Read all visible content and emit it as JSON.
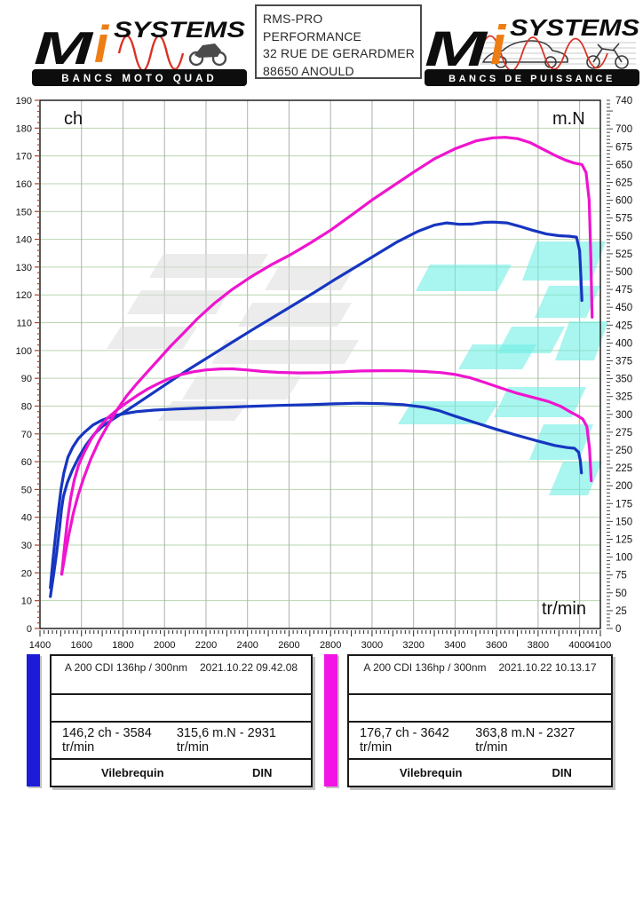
{
  "header": {
    "left_logo": {
      "m": "M",
      "i": "i",
      "systems": "SYSTEMS",
      "banner": "BANCS MOTO QUAD"
    },
    "right_logo": {
      "m": "M",
      "i": "i",
      "systems": "SYSTEMS",
      "banner": "BANCS DE PUISSANCE"
    },
    "info_box": {
      "lines": [
        "RMS-PRO",
        "PERFORMANCE",
        "32 RUE DE GERARDMER",
        "88650 ANOULD"
      ]
    }
  },
  "colors": {
    "run1_blue": "#1636c0",
    "run1_bar": "#1c1cd8",
    "run2_magenta": "#ef14cf",
    "run2_bar": "#f214e4",
    "grid_h": "#b9d4b0",
    "grid_v": "#a9b4ac",
    "left_tick": "#a84227",
    "watermark_gray": "#dcdcdc",
    "watermark_cyan": "#70efe5"
  },
  "chart_data": {
    "type": "line",
    "title": "",
    "x_axis": {
      "label": "tr/min",
      "min": 1400,
      "max": 4100,
      "major_tick": 200,
      "minor_tick": 20,
      "tick_labels": [
        1400,
        1600,
        1800,
        2000,
        2200,
        2400,
        2600,
        2800,
        3000,
        3200,
        3400,
        3600,
        3800,
        4000,
        4100
      ]
    },
    "y_left": {
      "label": "ch",
      "min": 0,
      "max": 190,
      "major_tick": 10,
      "minor_tick": 2,
      "tick_labels": [
        0,
        10,
        20,
        30,
        40,
        50,
        60,
        70,
        80,
        90,
        100,
        110,
        120,
        130,
        140,
        150,
        160,
        170,
        180,
        190
      ]
    },
    "y_right": {
      "label": "m.N",
      "min": 0,
      "max": 740,
      "major_tick": 25,
      "minor_tick": 5,
      "tick_labels": [
        0,
        25,
        50,
        75,
        100,
        125,
        150,
        175,
        200,
        225,
        250,
        275,
        300,
        325,
        350,
        375,
        400,
        425,
        450,
        475,
        500,
        525,
        550,
        575,
        600,
        625,
        650,
        675,
        700,
        740
      ]
    },
    "grid": {
      "h_color": "#b9d4b0",
      "v_color": "#a9b4ac",
      "grid_on": true
    },
    "legend_position": "bottom-panels",
    "series": [
      {
        "name": "run1-torque-mN",
        "axis": "right",
        "color": "#1636c0",
        "points": [
          [
            1450,
            57
          ],
          [
            1462,
            95
          ],
          [
            1475,
            130
          ],
          [
            1490,
            168
          ],
          [
            1502,
            196
          ],
          [
            1515,
            218
          ],
          [
            1535,
            240
          ],
          [
            1558,
            254
          ],
          [
            1585,
            266
          ],
          [
            1615,
            275
          ],
          [
            1655,
            285
          ],
          [
            1700,
            292
          ],
          [
            1755,
            298
          ],
          [
            1805,
            301
          ],
          [
            1870,
            304
          ],
          [
            1950,
            306
          ],
          [
            2050,
            307.5
          ],
          [
            2150,
            308.5
          ],
          [
            2250,
            309.5
          ],
          [
            2400,
            311
          ],
          [
            2550,
            312.5
          ],
          [
            2700,
            313.5
          ],
          [
            2820,
            314.8
          ],
          [
            2931,
            315.6
          ],
          [
            3050,
            315
          ],
          [
            3150,
            313.5
          ],
          [
            3250,
            310
          ],
          [
            3320,
            305.5
          ],
          [
            3400,
            297.5
          ],
          [
            3500,
            288
          ],
          [
            3600,
            279
          ],
          [
            3700,
            270.5
          ],
          [
            3800,
            262.5
          ],
          [
            3880,
            256.5
          ],
          [
            3940,
            253.5
          ],
          [
            3975,
            252.5
          ],
          [
            3995,
            247
          ],
          [
            4003,
            236
          ],
          [
            4009,
            218
          ]
        ]
      },
      {
        "name": "run1-power-ch",
        "axis": "left",
        "color": "#1636c0",
        "points": [
          [
            1450,
            11.5
          ],
          [
            1465,
            19
          ],
          [
            1480,
            27
          ],
          [
            1494,
            36
          ],
          [
            1504,
            43
          ],
          [
            1513,
            47.5
          ],
          [
            1532,
            52.5
          ],
          [
            1556,
            57
          ],
          [
            1586,
            61.5
          ],
          [
            1620,
            65.8
          ],
          [
            1660,
            69.8
          ],
          [
            1702,
            72.8
          ],
          [
            1752,
            75.3
          ],
          [
            1805,
            77.8
          ],
          [
            1862,
            80.6
          ],
          [
            1922,
            83.6
          ],
          [
            1982,
            86.6
          ],
          [
            2052,
            90.1
          ],
          [
            2132,
            93.9
          ],
          [
            2222,
            98.1
          ],
          [
            2322,
            102.8
          ],
          [
            2422,
            107.4
          ],
          [
            2522,
            111.9
          ],
          [
            2622,
            116.4
          ],
          [
            2722,
            120.9
          ],
          [
            2822,
            125.6
          ],
          [
            2922,
            130.1
          ],
          [
            3022,
            134.6
          ],
          [
            3122,
            139.1
          ],
          [
            3222,
            142.9
          ],
          [
            3300,
            145.1
          ],
          [
            3360,
            145.9
          ],
          [
            3420,
            145.4
          ],
          [
            3480,
            145.5
          ],
          [
            3540,
            146.1
          ],
          [
            3584,
            146.2
          ],
          [
            3650,
            145.9
          ],
          [
            3710,
            144.7
          ],
          [
            3770,
            143.3
          ],
          [
            3840,
            141.9
          ],
          [
            3900,
            141.3
          ],
          [
            3950,
            141.1
          ],
          [
            3985,
            140.8
          ],
          [
            4000,
            136
          ],
          [
            4006,
            127
          ],
          [
            4011,
            118
          ]
        ]
      },
      {
        "name": "run2-torque-mN",
        "axis": "right",
        "color": "#ef14cf",
        "points": [
          [
            1505,
            76
          ],
          [
            1518,
            114
          ],
          [
            1532,
            150
          ],
          [
            1548,
            183
          ],
          [
            1565,
            208
          ],
          [
            1586,
            229
          ],
          [
            1612,
            246
          ],
          [
            1646,
            265
          ],
          [
            1686,
            282
          ],
          [
            1726,
            295
          ],
          [
            1770,
            306
          ],
          [
            1816,
            316
          ],
          [
            1866,
            326
          ],
          [
            1916,
            335
          ],
          [
            1966,
            342.5
          ],
          [
            2016,
            349.5
          ],
          [
            2076,
            355.5
          ],
          [
            2136,
            359.5
          ],
          [
            2200,
            362.3
          ],
          [
            2270,
            363.6
          ],
          [
            2327,
            363.8
          ],
          [
            2400,
            362.2
          ],
          [
            2470,
            360.2
          ],
          [
            2550,
            358.8
          ],
          [
            2650,
            358
          ],
          [
            2750,
            358.3
          ],
          [
            2850,
            359.5
          ],
          [
            2950,
            360.8
          ],
          [
            3050,
            361.2
          ],
          [
            3150,
            361
          ],
          [
            3250,
            360
          ],
          [
            3330,
            358.5
          ],
          [
            3400,
            356
          ],
          [
            3470,
            351.5
          ],
          [
            3540,
            345
          ],
          [
            3620,
            337
          ],
          [
            3700,
            329.5
          ],
          [
            3780,
            323.5
          ],
          [
            3850,
            318
          ],
          [
            3910,
            311
          ],
          [
            3955,
            303.5
          ],
          [
            3990,
            298
          ],
          [
            4015,
            293.5
          ],
          [
            4035,
            283
          ],
          [
            4048,
            252
          ],
          [
            4056,
            207
          ]
        ]
      },
      {
        "name": "run2-power-ch",
        "axis": "left",
        "color": "#ef14cf",
        "points": [
          [
            1505,
            19.5
          ],
          [
            1521,
            26.5
          ],
          [
            1540,
            34
          ],
          [
            1561,
            41.5
          ],
          [
            1584,
            48
          ],
          [
            1610,
            54
          ],
          [
            1645,
            61
          ],
          [
            1685,
            67.5
          ],
          [
            1726,
            73
          ],
          [
            1770,
            78.5
          ],
          [
            1816,
            83.5
          ],
          [
            1866,
            88
          ],
          [
            1916,
            92.2
          ],
          [
            1971,
            96.7
          ],
          [
            2031,
            101.7
          ],
          [
            2091,
            106.2
          ],
          [
            2161,
            111.6
          ],
          [
            2241,
            117
          ],
          [
            2327,
            122
          ],
          [
            2421,
            126.7
          ],
          [
            2511,
            130.7
          ],
          [
            2601,
            134.2
          ],
          [
            2701,
            138.6
          ],
          [
            2801,
            143.3
          ],
          [
            2901,
            148.7
          ],
          [
            3001,
            154.2
          ],
          [
            3101,
            159.2
          ],
          [
            3201,
            164.2
          ],
          [
            3301,
            169
          ],
          [
            3401,
            172.6
          ],
          [
            3501,
            175.4
          ],
          [
            3581,
            176.5
          ],
          [
            3642,
            176.7
          ],
          [
            3701,
            176.2
          ],
          [
            3761,
            174.8
          ],
          [
            3821,
            172.5
          ],
          [
            3881,
            170.2
          ],
          [
            3931,
            168.5
          ],
          [
            3976,
            167.4
          ],
          [
            4011,
            166.9
          ],
          [
            4031,
            164
          ],
          [
            4046,
            154
          ],
          [
            4054,
            134
          ],
          [
            4060,
            112
          ]
        ]
      }
    ]
  },
  "result_panels": [
    {
      "bar_color": "#1c1cd8",
      "title": "A 200 CDI 136hp / 300nm",
      "timestamp": "2021.10.22 09.42.08",
      "power_peak": "146,2 ch - 3584 tr/min",
      "torque_peak": "315,6 m.N - 2931 tr/min",
      "mode": "Vilebrequin",
      "norm": "DIN"
    },
    {
      "bar_color": "#f214e4",
      "title": "A 200 CDI 136hp / 300nm",
      "timestamp": "2021.10.22 10.13.17",
      "power_peak": "176,7 ch - 3642 tr/min",
      "torque_peak": "363,8 m.N - 2327 tr/min",
      "mode": "Vilebrequin",
      "norm": "DIN"
    }
  ]
}
